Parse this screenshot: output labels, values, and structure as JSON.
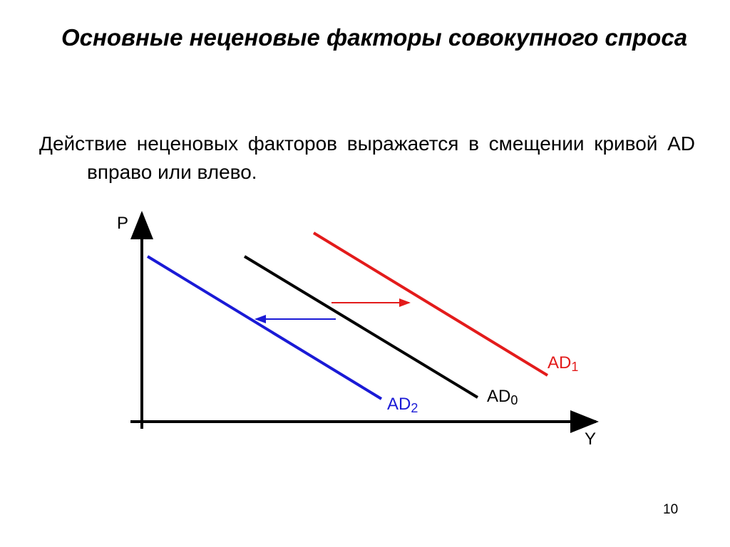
{
  "header": {
    "title": "Основные неценовые факторы совокупного спроса"
  },
  "body": {
    "text": "Действие неценовых факторов выражается в смещении кривой AD вправо или влево."
  },
  "diagram": {
    "y_axis_label": "P",
    "x_axis_label": "Y",
    "curves": [
      {
        "main": "AD",
        "sub": "0"
      },
      {
        "main": "AD",
        "sub": "1"
      },
      {
        "main": "AD",
        "sub": "2"
      }
    ]
  },
  "footer": {
    "page_number": "10"
  }
}
